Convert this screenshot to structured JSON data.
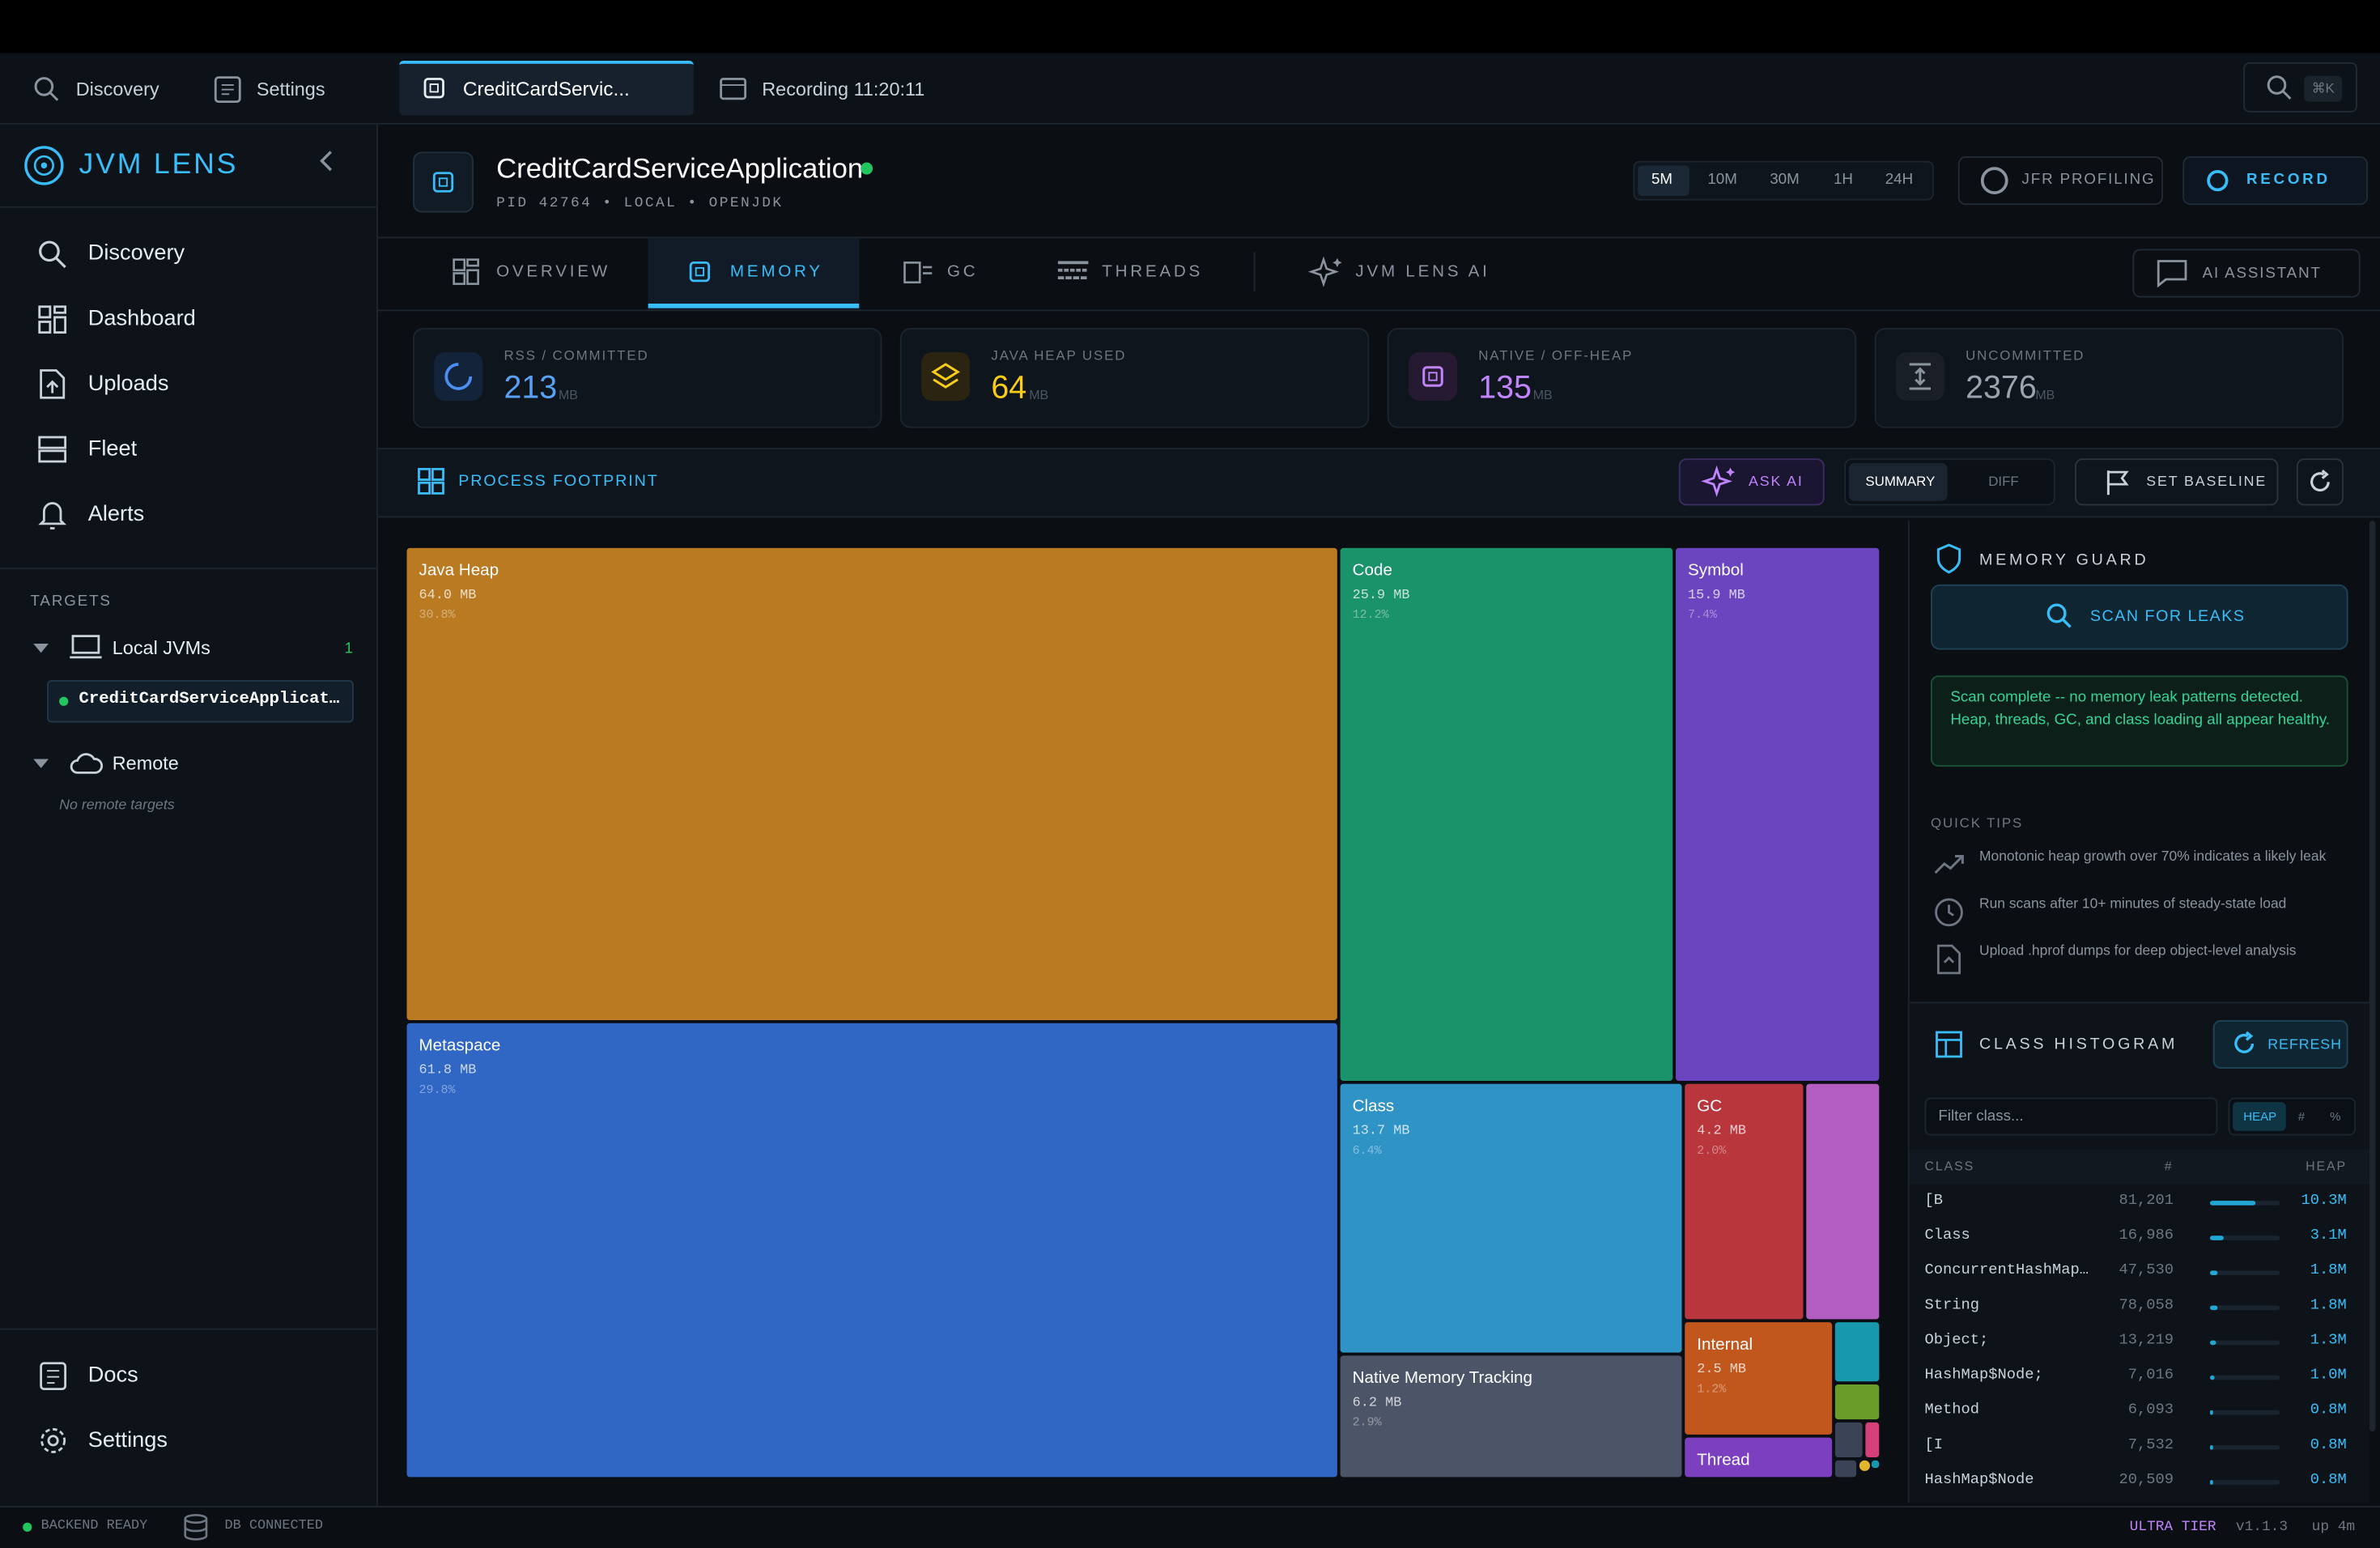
{
  "top_tabs": {
    "discovery": "Discovery",
    "settings": "Settings",
    "active": "CreditCardServic...",
    "recording": "Recording 11:20:11",
    "shortcut": "⌘K"
  },
  "sidebar": {
    "brand": "JVM LENS",
    "nav": [
      "Discovery",
      "Dashboard",
      "Uploads",
      "Fleet",
      "Alerts"
    ],
    "targets_label": "TARGETS",
    "local": {
      "label": "Local JVMs",
      "count": 1,
      "items": [
        "CreditCardServiceApplicat…"
      ]
    },
    "remote": {
      "label": "Remote",
      "empty": "No remote targets"
    },
    "footer": [
      "Docs",
      "Settings"
    ]
  },
  "header": {
    "title": "CreditCardServiceApplication",
    "meta": "PID 42764 • LOCAL • OPENJDK",
    "ranges": [
      "5M",
      "10M",
      "30M",
      "1H",
      "24H"
    ],
    "jfr": "JFR PROFILING",
    "record": "RECORD"
  },
  "tabs": {
    "items": [
      "OVERVIEW",
      "MEMORY",
      "GC",
      "THREADS",
      "JVM LENS AI"
    ],
    "assistant": "AI ASSISTANT"
  },
  "stats": [
    {
      "label": "RSS / COMMITTED",
      "value": 213,
      "unit": "MB"
    },
    {
      "label": "JAVA HEAP USED",
      "value": 64,
      "unit": "MB"
    },
    {
      "label": "NATIVE / OFF-HEAP",
      "value": 135,
      "unit": "MB"
    },
    {
      "label": "UNCOMMITTED",
      "value": 2376,
      "unit": "MB"
    }
  ],
  "toolbar": {
    "title": "PROCESS FOOTPRINT",
    "ask_ai": "ASK AI",
    "summary": "SUMMARY",
    "diff": "DIFF",
    "baseline": "SET BASELINE"
  },
  "treemap": [
    {
      "name": "Java Heap",
      "size": "64.0 MB",
      "pct": "30.8%"
    },
    {
      "name": "Metaspace",
      "size": "61.8 MB",
      "pct": "29.8%"
    },
    {
      "name": "Code",
      "size": "25.9 MB",
      "pct": "12.2%"
    },
    {
      "name": "Symbol",
      "size": "15.9 MB",
      "pct": "7.4%"
    },
    {
      "name": "Class",
      "size": "13.7 MB",
      "pct": "6.4%"
    },
    {
      "name": "GC",
      "size": "4.2 MB",
      "pct": "2.0%"
    },
    {
      "name": "Native Memory Tracking",
      "size": "6.2 MB",
      "pct": "2.9%"
    },
    {
      "name": "Internal",
      "size": "2.5 MB",
      "pct": "1.2%"
    },
    {
      "name": "Thread"
    }
  ],
  "memory_guard": {
    "title": "MEMORY GUARD",
    "scan": "SCAN FOR LEAKS",
    "message": "Scan complete -- no memory leak patterns detected. Heap, threads, GC, and class loading all appear healthy.",
    "tips_label": "QUICK TIPS",
    "tips": [
      "Monotonic heap growth over 70% indicates a likely leak",
      "Run scans after 10+ minutes of steady-state load",
      "Upload .hprof dumps for deep object-level analysis"
    ]
  },
  "histogram": {
    "title": "CLASS HISTOGRAM",
    "refresh": "REFRESH",
    "filter": "Filter class...",
    "modes": [
      "HEAP",
      "#",
      "%"
    ],
    "columns": [
      "CLASS",
      "#",
      "HEAP"
    ],
    "rows": [
      [
        "[B",
        "81,201",
        "10.3M"
      ],
      [
        "Class",
        "16,986",
        "3.1M"
      ],
      [
        "ConcurrentHashMap…",
        "47,530",
        "1.8M"
      ],
      [
        "String",
        "78,058",
        "1.8M"
      ],
      [
        "Object;",
        "13,219",
        "1.3M"
      ],
      [
        "HashMap$Node;",
        "7,016",
        "1.0M"
      ],
      [
        "Method",
        "6,093",
        "0.8M"
      ],
      [
        "[I",
        "7,532",
        "0.8M"
      ],
      [
        "HashMap$Node",
        "20,509",
        "0.8M"
      ]
    ]
  },
  "status": {
    "backend": "BACKEND READY",
    "db": "DB CONNECTED",
    "tier": "ULTRA TIER",
    "version": "v1.1.3",
    "uptime": "up 4m"
  }
}
